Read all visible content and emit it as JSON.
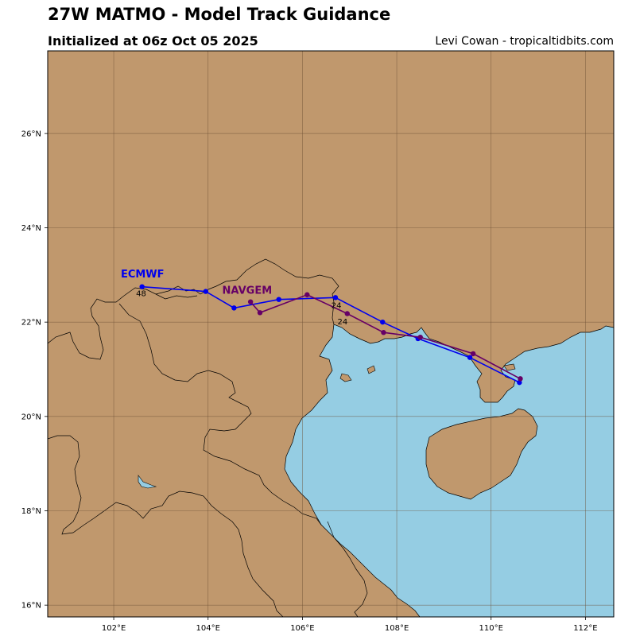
{
  "header": {
    "title": "27W MATMO - Model Track Guidance",
    "subtitle": "Initialized at 06z Oct 05 2025",
    "credit": "Levi Cowan - tropicaltidbits.com"
  },
  "map": {
    "lon_range": [
      100.6,
      112.6
    ],
    "lat_range": [
      15.75,
      27.75
    ],
    "land_color": "#c0986d",
    "water_color": "#95cde3",
    "grid_color": "#6b4e35",
    "lon_ticks": [
      {
        "value": 102,
        "label": "102°E"
      },
      {
        "value": 104,
        "label": "104°E"
      },
      {
        "value": 106,
        "label": "106°E"
      },
      {
        "value": 108,
        "label": "108°E"
      },
      {
        "value": 110,
        "label": "110°E"
      },
      {
        "value": 112,
        "label": "112°E"
      }
    ],
    "lat_ticks": [
      {
        "value": 16,
        "label": "16°N"
      },
      {
        "value": 18,
        "label": "18°N"
      },
      {
        "value": 20,
        "label": "20°N"
      },
      {
        "value": 22,
        "label": "22°N"
      },
      {
        "value": 24,
        "label": "24°N"
      },
      {
        "value": 26,
        "label": "26°N"
      }
    ]
  },
  "tracks": [
    {
      "name": "ECMWF",
      "color": "#0000ee",
      "points": [
        [
          110.6,
          20.72
        ],
        [
          109.55,
          21.25
        ],
        [
          108.45,
          21.65
        ],
        [
          107.7,
          22.0
        ],
        [
          106.7,
          22.52
        ],
        [
          105.5,
          22.48
        ],
        [
          104.55,
          22.3
        ],
        [
          103.95,
          22.65
        ],
        [
          102.6,
          22.75
        ]
      ],
      "label_lon": 102.15,
      "label_lat": 22.95,
      "hour_labels": [
        {
          "text": "24",
          "lon": 106.72,
          "lat": 22.3
        },
        {
          "text": "48",
          "lon": 102.58,
          "lat": 22.55
        }
      ]
    },
    {
      "name": "NAVGEM",
      "color": "#660066",
      "points": [
        [
          110.62,
          20.8
        ],
        [
          109.62,
          21.33
        ],
        [
          108.5,
          21.68
        ],
        [
          107.72,
          21.78
        ],
        [
          106.95,
          22.18
        ],
        [
          106.1,
          22.58
        ],
        [
          105.1,
          22.2
        ],
        [
          104.9,
          22.43
        ]
      ],
      "label_lon": 104.3,
      "label_lat": 22.6,
      "hour_labels": [
        {
          "text": "24",
          "lon": 106.85,
          "lat": 21.95
        }
      ]
    }
  ]
}
